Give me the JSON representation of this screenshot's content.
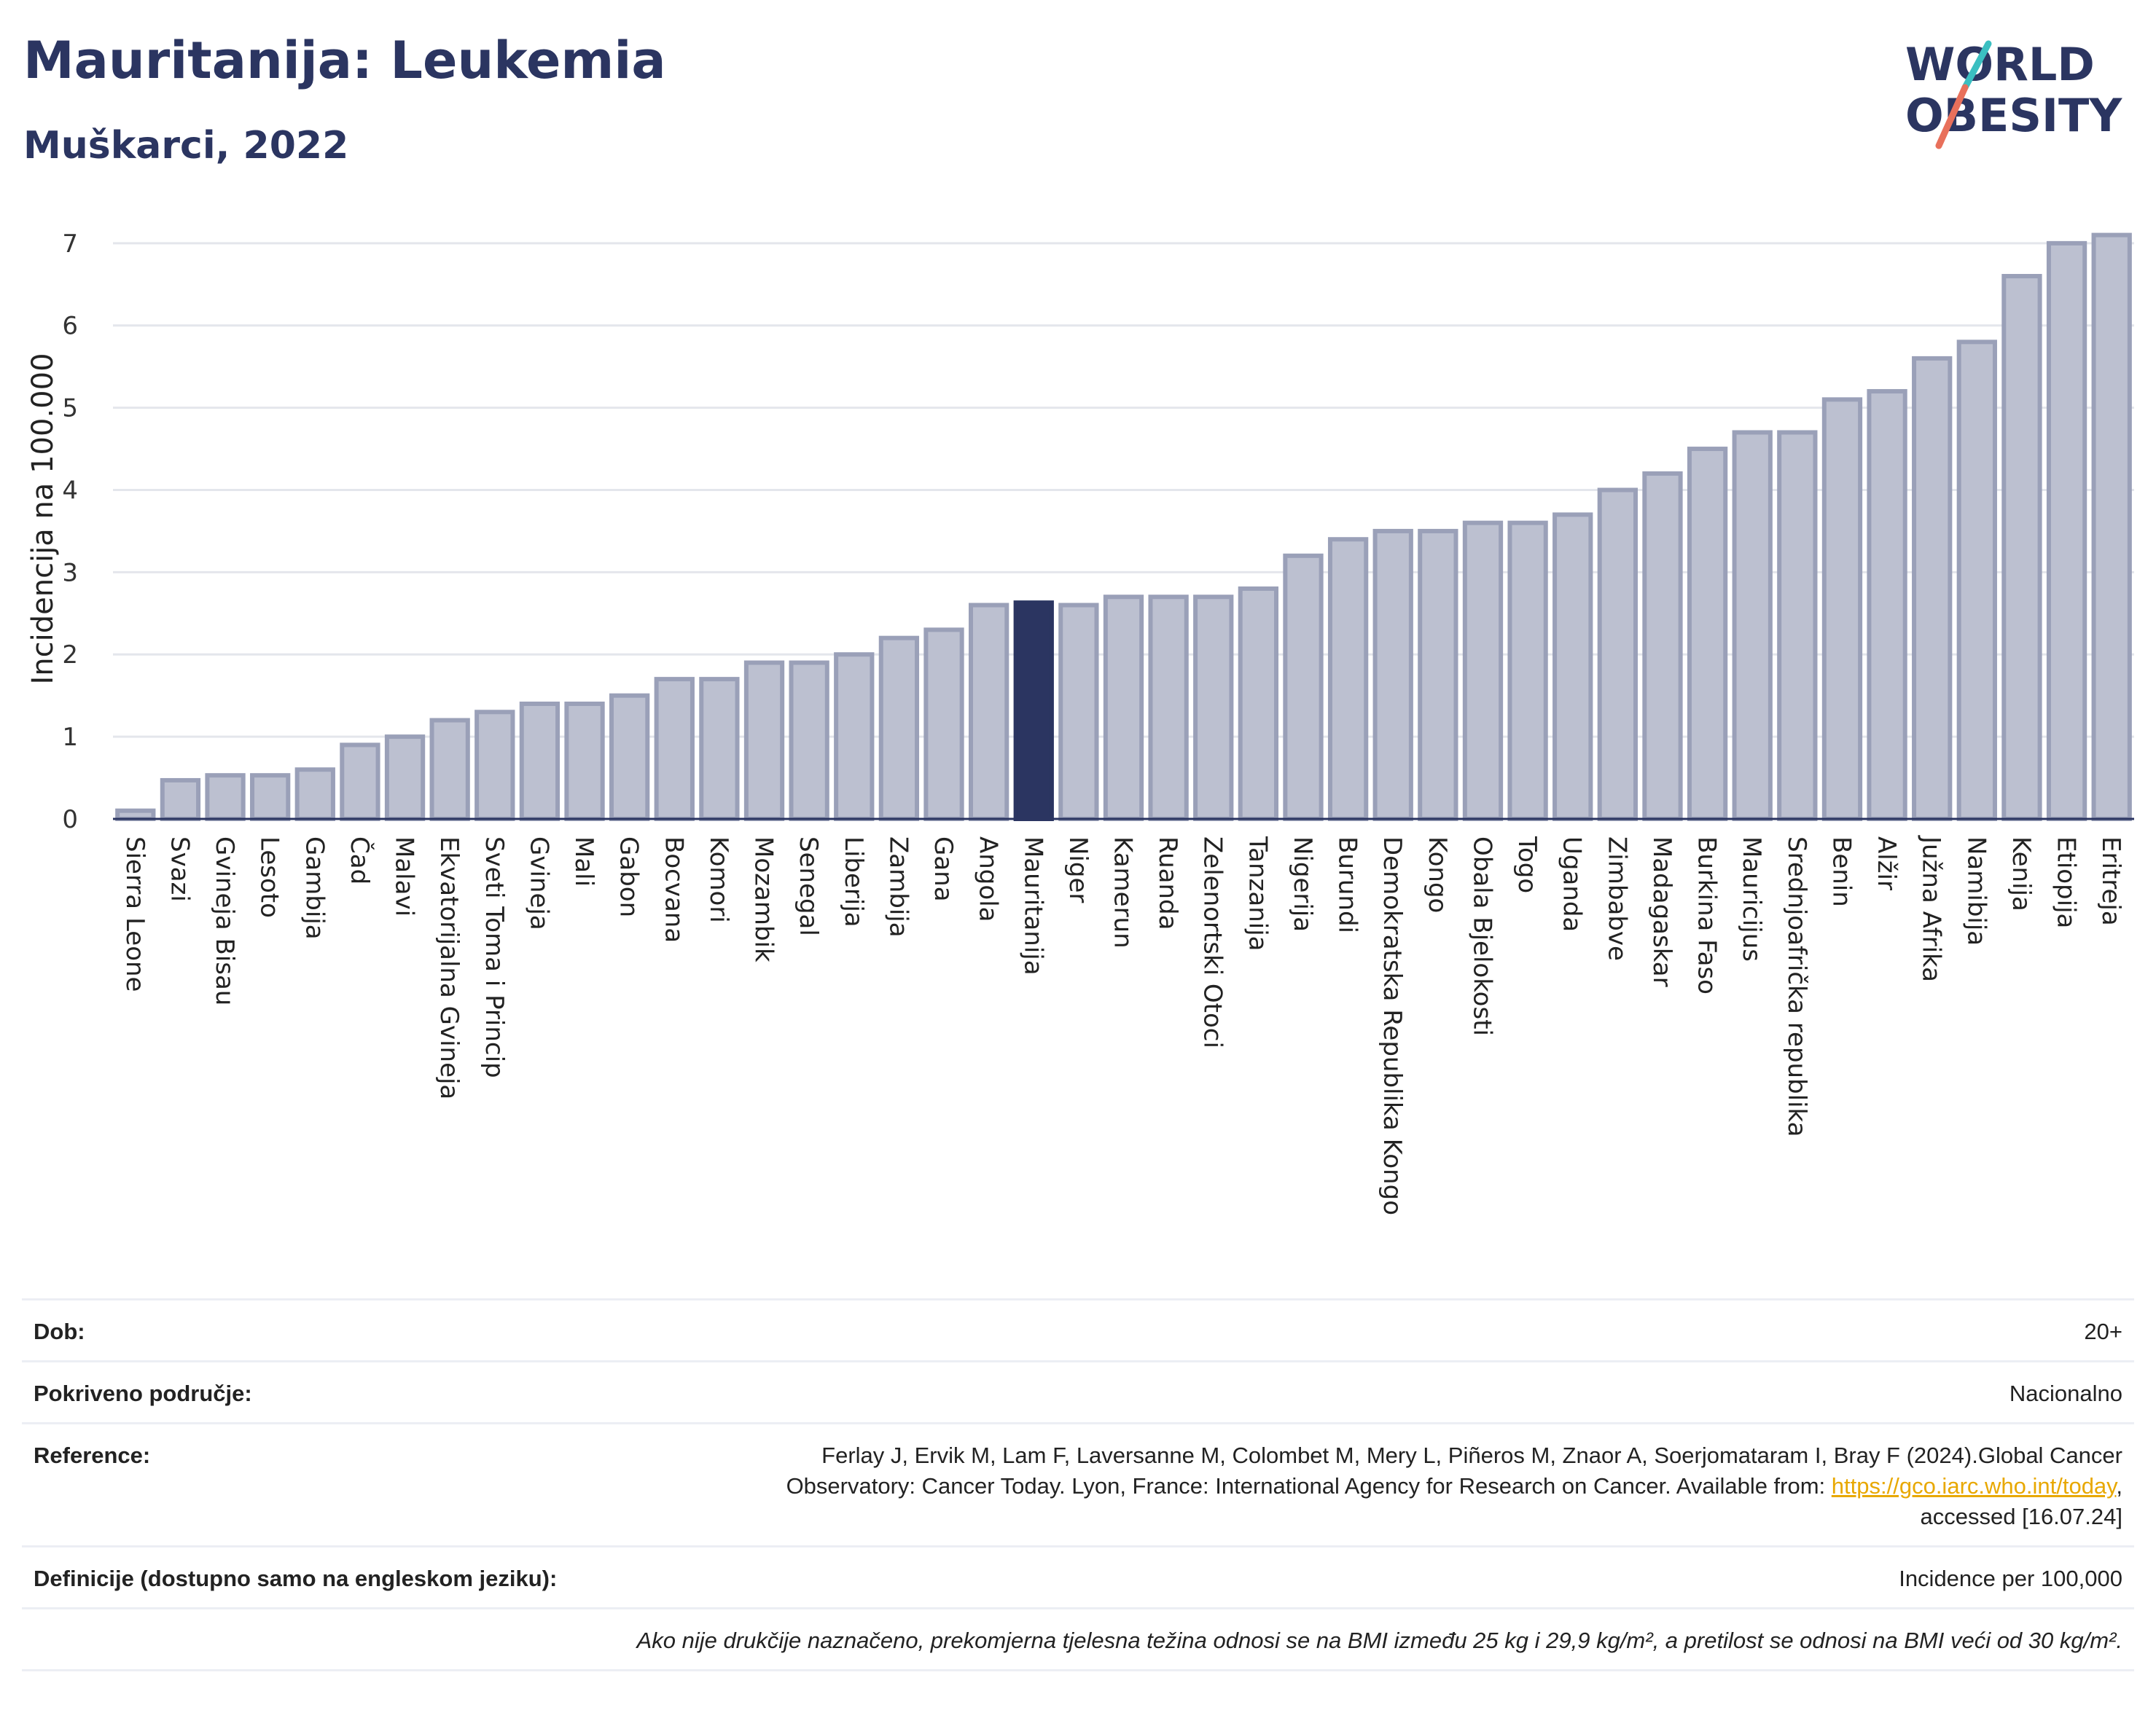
{
  "title": "Mauritanija: Leukemia",
  "subtitle": "Muškarci, 2022",
  "logo": {
    "line1": "WORLD",
    "line2": "OBESITY"
  },
  "colors": {
    "bar": "#bcc0d0",
    "bar_border": "#9aa0b8",
    "highlight": "#2b3561",
    "grid": "#e4e6ec",
    "title": "#2b3561"
  },
  "chart_data": {
    "type": "bar",
    "ylabel": "Incidencija na 100.000",
    "ylim": [
      0,
      7.3
    ],
    "yticks": [
      0,
      1,
      2,
      3,
      4,
      5,
      6,
      7
    ],
    "highlight": "Mauritanija",
    "categories": [
      "Sierra Leone",
      "Svazi",
      "Gvineja Bisau",
      "Lesoto",
      "Gambija",
      "Čad",
      "Malavi",
      "Ekvatorijalna Gvineja",
      "Sveti Toma i Princip",
      "Gvineja",
      "Mali",
      "Gabon",
      "Bocvana",
      "Komori",
      "Mozambik",
      "Senegal",
      "Liberija",
      "Zambija",
      "Gana",
      "Angola",
      "Mauritanija",
      "Niger",
      "Kamerun",
      "Ruanda",
      "Zelenortski Otoci",
      "Tanzanija",
      "Nigerija",
      "Burundi",
      "Demokratska Republika Kongo",
      "Kongo",
      "Obala Bjelokosti",
      "Togo",
      "Uganda",
      "Zimbabve",
      "Madagaskar",
      "Burkina Faso",
      "Mauricijus",
      "Srednjoafrička republika",
      "Benin",
      "Alžir",
      "Južna Afrika",
      "Namibija",
      "Kenija",
      "Etiopija",
      "Eritreja"
    ],
    "values": [
      0.1,
      0.47,
      0.53,
      0.53,
      0.6,
      0.9,
      1.0,
      1.2,
      1.3,
      1.4,
      1.4,
      1.5,
      1.7,
      1.7,
      1.9,
      1.9,
      2.0,
      2.2,
      2.3,
      2.6,
      2.63,
      2.6,
      2.7,
      2.7,
      2.7,
      2.8,
      3.2,
      3.4,
      3.5,
      3.5,
      3.6,
      3.6,
      3.7,
      4.0,
      4.2,
      4.5,
      4.7,
      4.7,
      5.1,
      5.2,
      5.6,
      5.8,
      6.6,
      7.0,
      7.1
    ]
  },
  "meta": {
    "age_label": "Dob:",
    "age_value": "20+",
    "coverage_label": "Pokriveno područje:",
    "coverage_value": "Nacionalno",
    "ref_label": "Reference:",
    "ref_text_1": "Ferlay J, Ervik M, Lam F, Laversanne M, Colombet M, Mery L, Piñeros M, Znaor A, Soerjomataram I, Bray F (2024).Global Cancer",
    "ref_text_2": "Observatory: Cancer Today. Lyon, France: International Agency for Research on Cancer. Available from:",
    "ref_link": "https://gco.iarc.who.int/today",
    "ref_text_3": "accessed [16.07.24]",
    "def_label": "Definicije (dostupno samo na engleskom jeziku):",
    "def_value": "Incidence per 100,000",
    "note": "Ako nije drukčije naznačeno, prekomjerna tjelesna težina odnosi se na BMI između 25 kg i 29,9 kg/m², a pretilost se odnosi na BMI veći od 30 kg/m²."
  }
}
